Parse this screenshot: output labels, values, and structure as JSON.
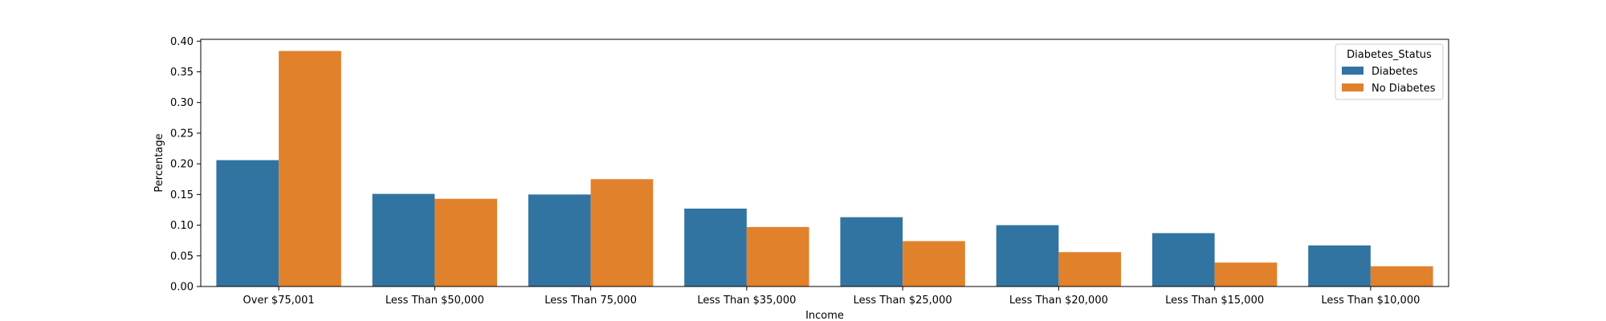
{
  "chart_data": {
    "type": "bar",
    "title": "",
    "xlabel": "Income",
    "ylabel": "Percentage",
    "ylim": [
      0,
      0.403
    ],
    "yticks": [
      "0.00",
      "0.05",
      "0.10",
      "0.15",
      "0.20",
      "0.25",
      "0.30",
      "0.35",
      "0.40"
    ],
    "categories": [
      "Over $75,001",
      "Less Than $50,000",
      "Less Than 75,000",
      "Less Than $35,000",
      "Less Than $25,000",
      "Less Than $20,000",
      "Less Than $15,000",
      "Less Than $10,000"
    ],
    "series": [
      {
        "name": "Diabetes",
        "color": "#3274a1",
        "values": [
          0.206,
          0.151,
          0.15,
          0.127,
          0.113,
          0.1,
          0.087,
          0.067
        ]
      },
      {
        "name": "No Diabetes",
        "color": "#e1812c",
        "values": [
          0.384,
          0.143,
          0.175,
          0.097,
          0.074,
          0.056,
          0.039,
          0.033
        ]
      }
    ],
    "legend": {
      "title": "Diabetes_Status",
      "position": "top-right"
    },
    "grid": false
  }
}
